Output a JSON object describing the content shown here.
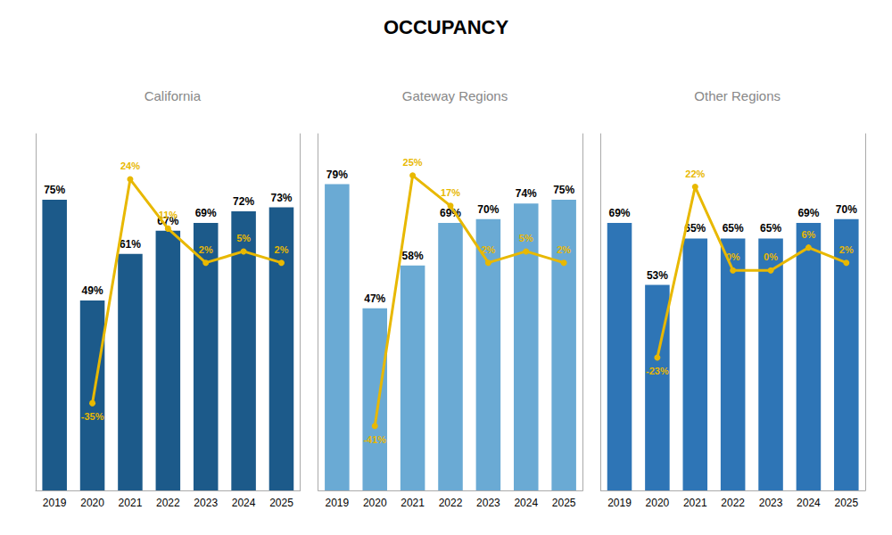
{
  "title": "OCCUPANCY",
  "chart_data": [
    {
      "type": "bar",
      "title": "California",
      "categories": [
        "2019",
        "2020",
        "2021",
        "2022",
        "2023",
        "2024",
        "2025"
      ],
      "series": [
        {
          "type": "bar",
          "color": "#1c5a8a",
          "values": [
            75,
            49,
            61,
            67,
            69,
            72,
            73
          ],
          "value_labels": [
            "75%",
            "49%",
            "61%",
            "67%",
            "69%",
            "72%",
            "73%"
          ]
        },
        {
          "type": "line",
          "axis": "y2",
          "color": "#e8b800",
          "marker": "circle",
          "values": [
            null,
            -35,
            24,
            11,
            2,
            5,
            2
          ],
          "value_labels": [
            null,
            "-35%",
            "24%",
            "11%",
            "2%",
            "5%",
            "2%"
          ]
        }
      ],
      "ylim": [
        0,
        92
      ],
      "y2lim": [
        -58,
        36
      ],
      "tick_labels": "x",
      "grid": false,
      "data_labels": true
    },
    {
      "type": "bar",
      "title": "Gateway Regions",
      "categories": [
        "2019",
        "2020",
        "2021",
        "2022",
        "2023",
        "2024",
        "2025"
      ],
      "series": [
        {
          "type": "bar",
          "color": "#6aaad4",
          "values": [
            79,
            47,
            58,
            69,
            70,
            74,
            75
          ],
          "value_labels": [
            "79%",
            "47%",
            "58%",
            "69%",
            "70%",
            "74%",
            "75%"
          ]
        },
        {
          "type": "line",
          "axis": "y2",
          "color": "#e8b800",
          "marker": "circle",
          "values": [
            null,
            -41,
            25,
            17,
            2,
            5,
            2
          ],
          "value_labels": [
            null,
            "-41%",
            "25%",
            "17%",
            "2%",
            "5%",
            "2%"
          ]
        }
      ],
      "ylim": [
        0,
        92
      ],
      "y2lim": [
        -58,
        36
      ],
      "tick_labels": "x",
      "grid": false,
      "data_labels": true
    },
    {
      "type": "bar",
      "title": "Other Regions",
      "categories": [
        "2019",
        "2020",
        "2021",
        "2022",
        "2023",
        "2024",
        "2025"
      ],
      "series": [
        {
          "type": "bar",
          "color": "#2e75b6",
          "values": [
            69,
            53,
            65,
            65,
            65,
            69,
            70
          ],
          "value_labels": [
            "69%",
            "53%",
            "65%",
            "65%",
            "65%",
            "69%",
            "70%"
          ]
        },
        {
          "type": "line",
          "axis": "y2",
          "color": "#e8b800",
          "marker": "circle",
          "values": [
            null,
            -23,
            22,
            0,
            0,
            6,
            2
          ],
          "value_labels": [
            null,
            "-23%",
            "22%",
            "0%",
            "0%",
            "6%",
            "2%"
          ]
        }
      ],
      "ylim": [
        0,
        92
      ],
      "y2lim": [
        -58,
        36
      ],
      "tick_labels": "x",
      "grid": false,
      "data_labels": true
    }
  ]
}
